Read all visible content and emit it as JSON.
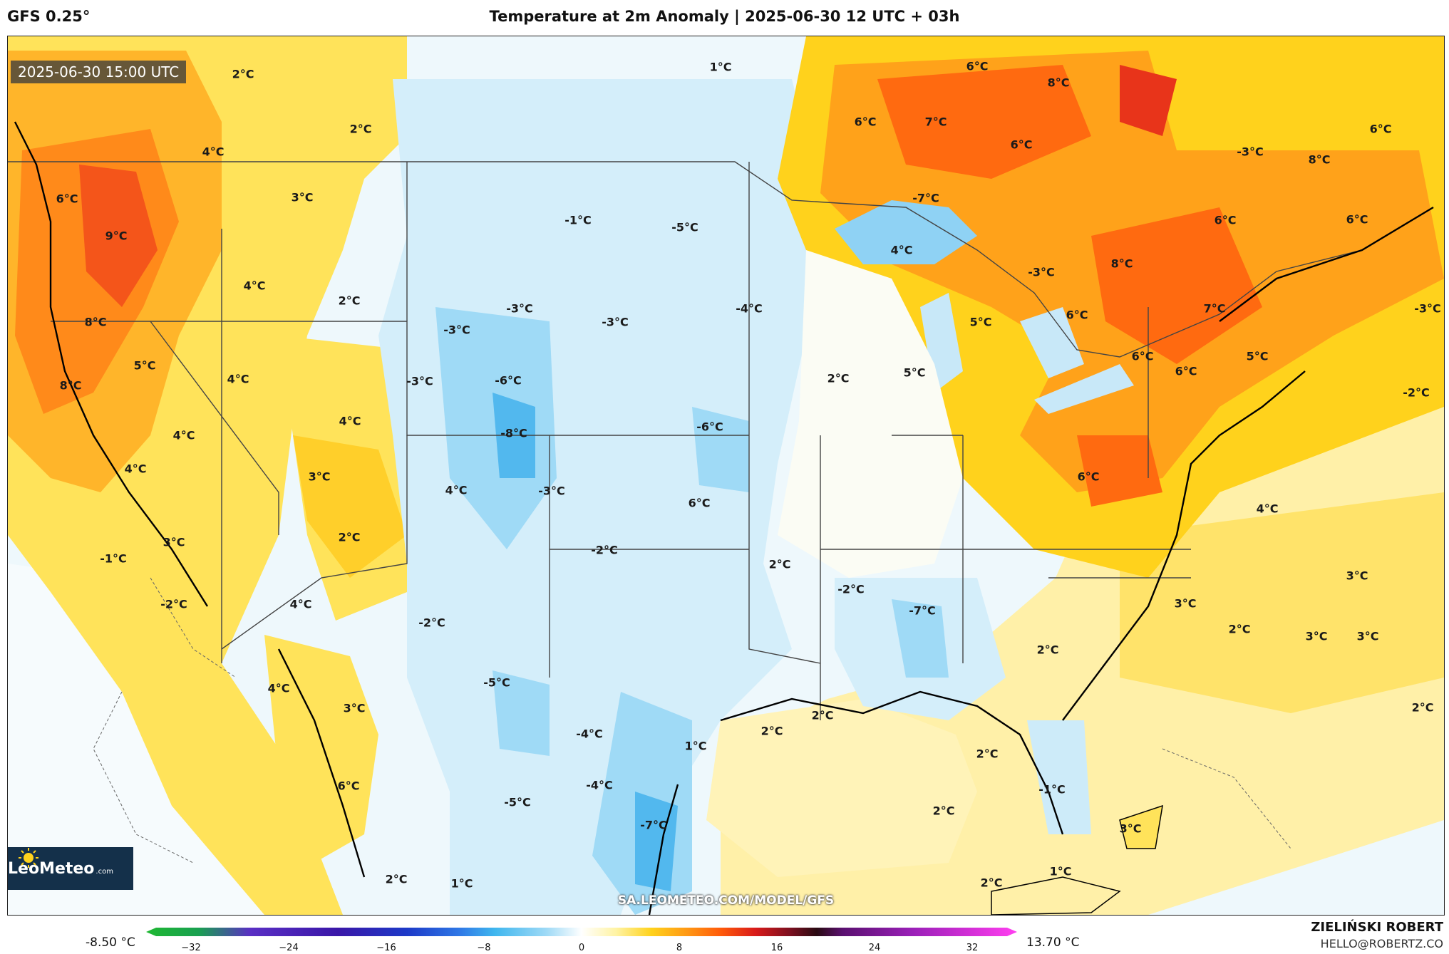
{
  "header": {
    "model": "GFS 0.25°",
    "title": "Temperature at 2m Anomaly | 2025-06-30 12 UTC + 03h"
  },
  "map": {
    "valid_time": "2025-06-30 15:00 UTC",
    "labels": [
      "2°C",
      "1°C",
      "2°C",
      "4°C",
      "6°C",
      "3°C",
      "9°C",
      "4°C",
      "2°C",
      "8°C",
      "5°C",
      "4°C",
      "8°C",
      "4°C",
      "4°C",
      "3°C",
      "4°C",
      "4°C",
      "3°C",
      "2°C",
      "-1°C",
      "-2°C",
      "4°C",
      "-2°C",
      "4°C",
      "3°C",
      "6°C",
      "2°C",
      "1°C",
      "-1°C",
      "-5°C",
      "-3°C",
      "-3°C",
      "-3°C",
      "-4°C",
      "-3°C",
      "-6°C",
      "-8°C",
      "-6°C",
      "-3°C",
      "6°C",
      "-2°C",
      "-5°C",
      "-4°C",
      "-4°C",
      "-5°C",
      "-7°C",
      "1°C",
      "6°C",
      "7°C",
      "8°C",
      "6°C",
      "-7°C",
      "4°C",
      "-3°C",
      "6°C",
      "-3°C",
      "8°C",
      "8°C",
      "6°C",
      "6°C",
      "6°C",
      "7°C",
      "5°C",
      "6°C",
      "6°C",
      "5°C",
      "5°C",
      "6°C",
      "2°C",
      "-2°C",
      "2°C",
      "-2°C",
      "-7°C",
      "2°C",
      "2°C",
      "2°C",
      "2°C",
      "6°C",
      "2°C",
      "-1°C",
      "3°C",
      "1°C",
      "4°C",
      "3°C",
      "3°C",
      "2°C",
      "3°C",
      "3°C",
      "2°C",
      "-3°C",
      "2°C"
    ],
    "source": "SA.LEOMETEO.COM/MODEL/GFS",
    "logo": {
      "name": "LeoMeteo",
      "domain": ".com"
    }
  },
  "colorbar": {
    "min_label": "-8.50 °C",
    "max_label": "13.70 °C",
    "ticks": [
      "−32",
      "−24",
      "−16",
      "−8",
      "0",
      "8",
      "16",
      "24",
      "32"
    ],
    "colors": [
      "#1fb832",
      "#19a050",
      "#5a2fc4",
      "#3a17a8",
      "#1d3ac8",
      "#2f78e6",
      "#3fb6ee",
      "#9fdaf6",
      "#ffffff",
      "#fff3a3",
      "#ffd21c",
      "#ff9a14",
      "#ff5a0a",
      "#d81a1a",
      "#7a0f1f",
      "#2a0a12",
      "#5a1070",
      "#9a20b8",
      "#d630d8",
      "#ff40f0"
    ]
  },
  "footer": {
    "author": "ZIELIŃSKI ROBERT",
    "email": "HELLO@ROBERTZ.CO"
  }
}
